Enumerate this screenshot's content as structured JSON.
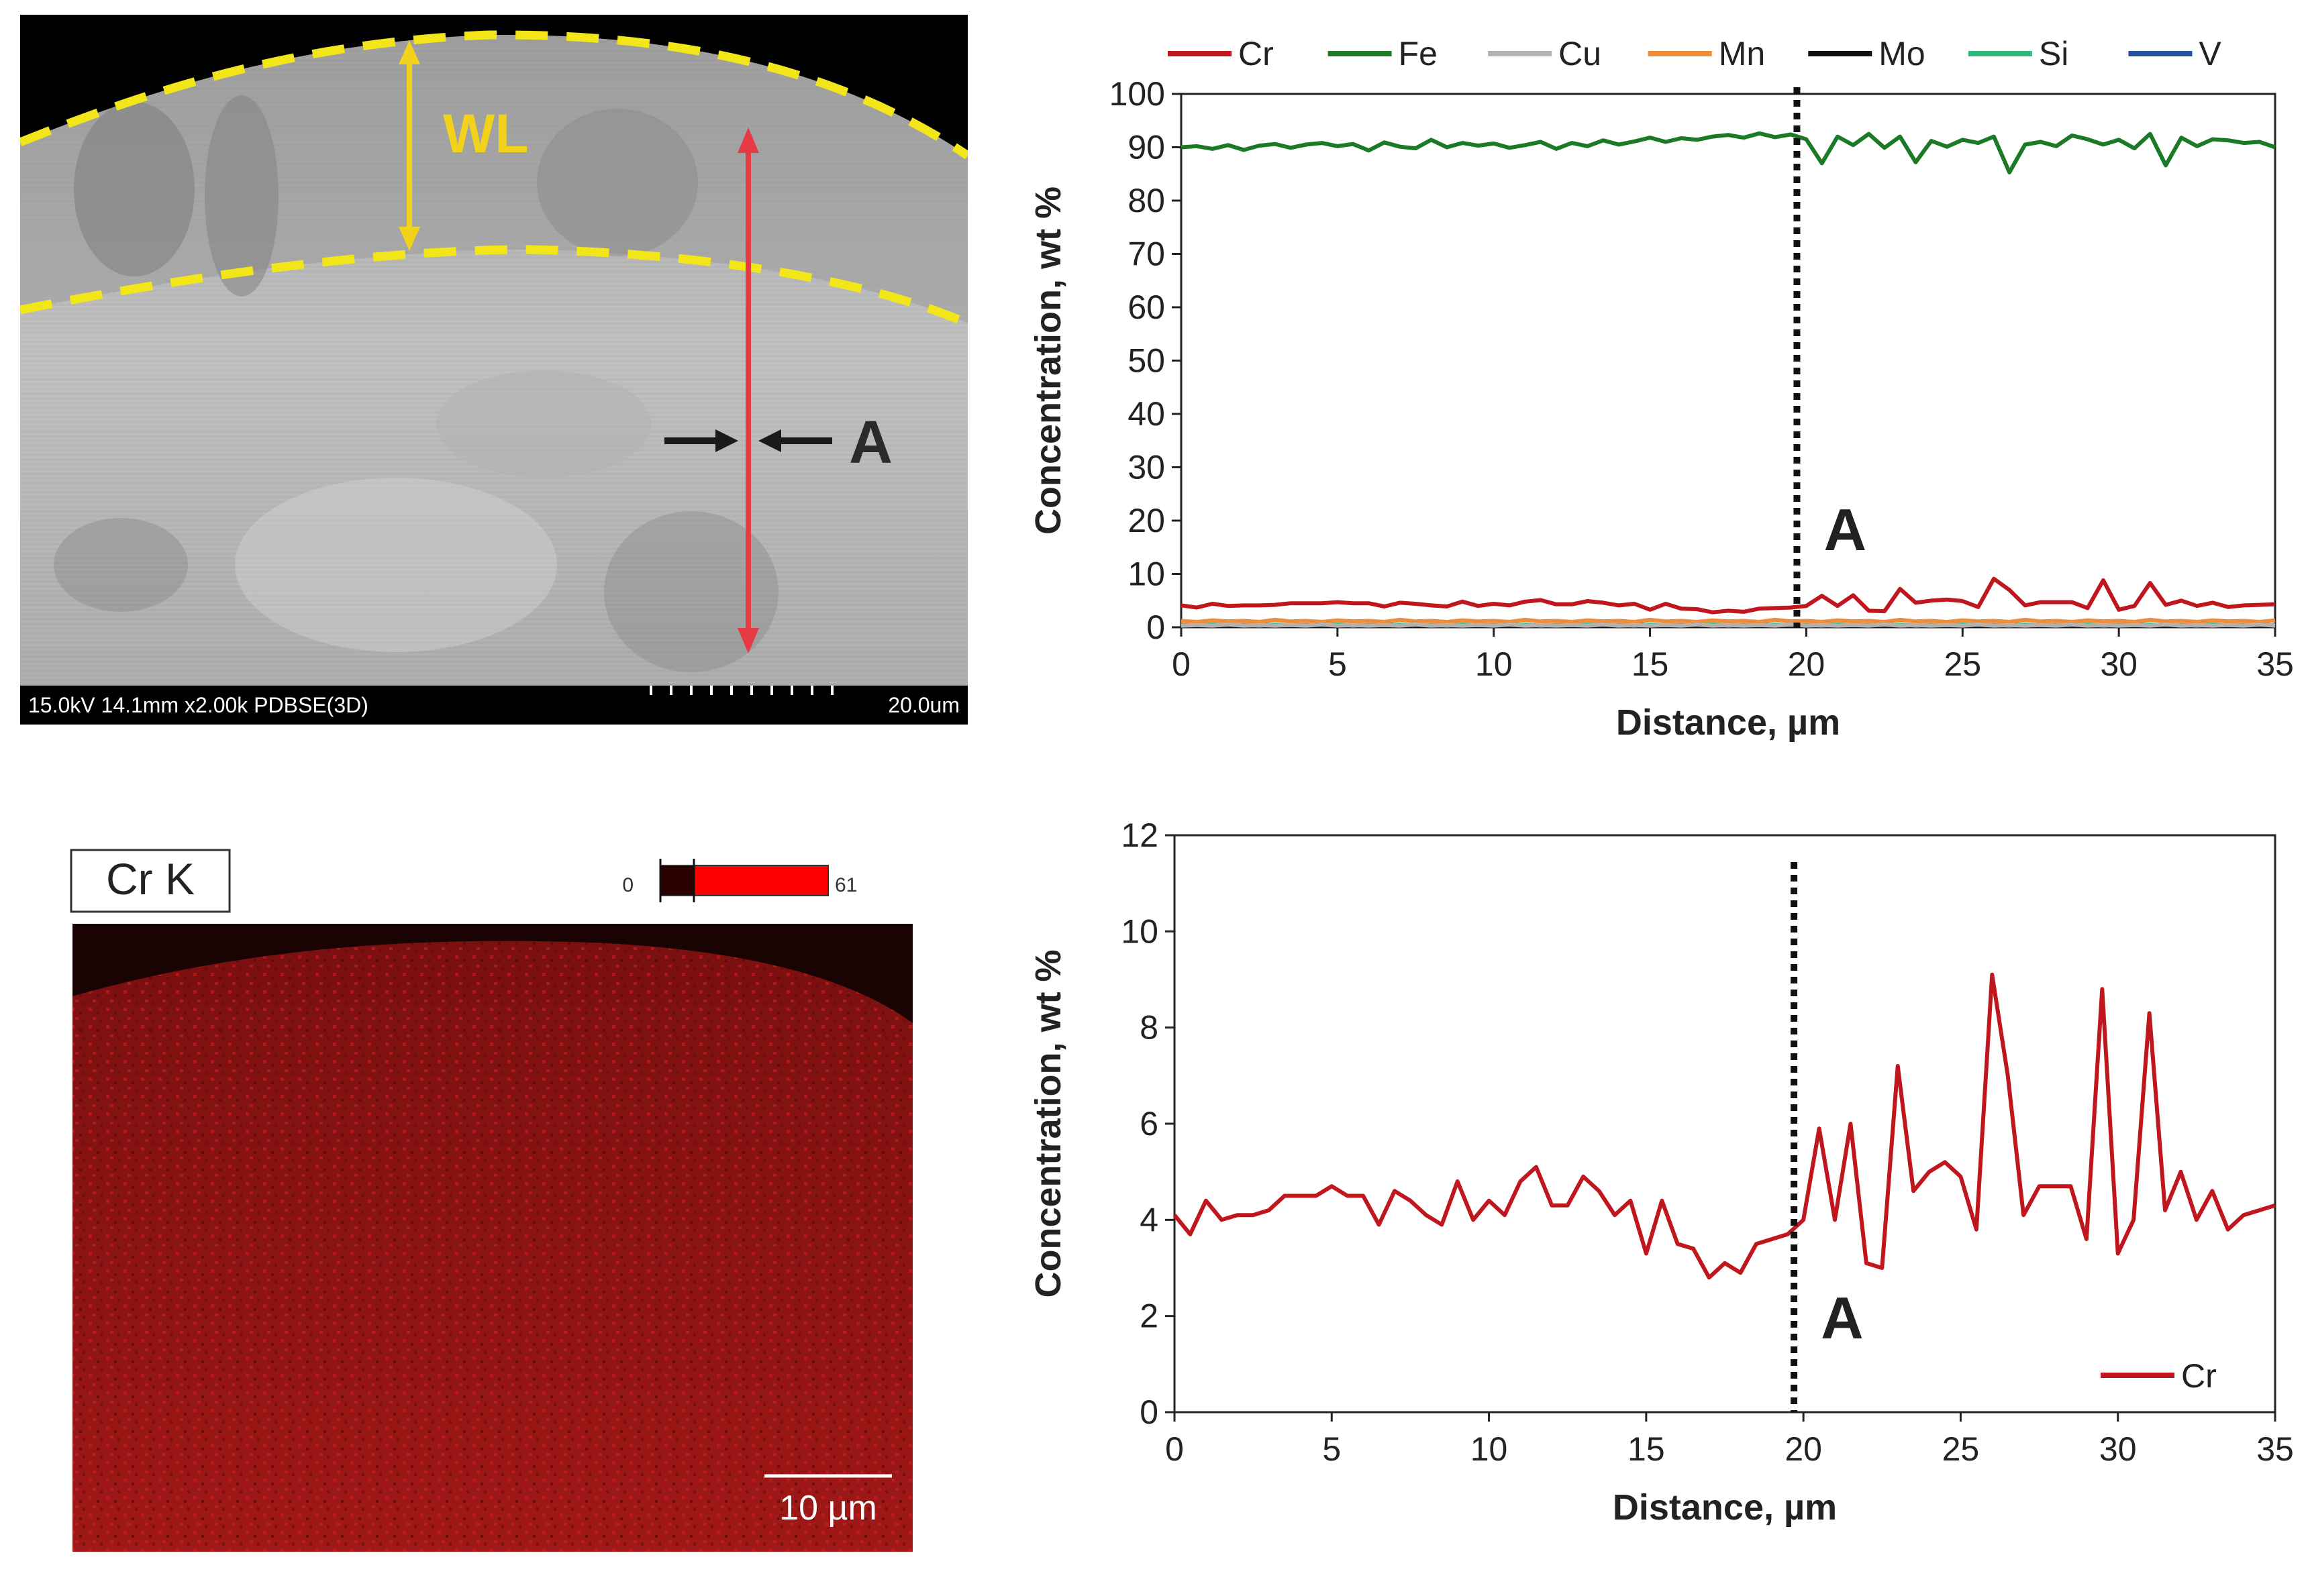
{
  "sem_image": {
    "label_wl": "WL",
    "label_a": "A",
    "footer_info": "15.0kV 14.1mm x2.00k PDBSE(3D)",
    "scale_text": "20.0um",
    "colors": {
      "dashed_boundary": "#f2e61a",
      "wl_arrow": "#f2d21a",
      "profile_arrow": "#e63a44",
      "marker_arrows": "#1a1a1a"
    }
  },
  "element_map": {
    "title": "Cr K",
    "colorbar_min": "0",
    "colorbar_max": "61",
    "scale_text": "10 µm",
    "colors": {
      "map": "#a01818",
      "colorbar_high": "#ff0000"
    }
  },
  "chart_data": [
    {
      "type": "line",
      "title": "",
      "xlabel": "Distance, µm",
      "ylabel": "Concentration, wt %",
      "xlim": [
        0,
        35
      ],
      "ylim": [
        0,
        100
      ],
      "xticks": [
        0,
        5,
        10,
        15,
        20,
        25,
        30,
        35
      ],
      "yticks": [
        0,
        10,
        20,
        30,
        40,
        50,
        60,
        70,
        80,
        90,
        100
      ],
      "legend_position": "top",
      "annotation": {
        "label": "A",
        "x": 19.7
      },
      "x": [
        0,
        0.5,
        1,
        1.5,
        2,
        2.5,
        3,
        3.5,
        4,
        4.5,
        5,
        5.5,
        6,
        6.5,
        7,
        7.5,
        8,
        8.5,
        9,
        9.5,
        10,
        10.5,
        11,
        11.5,
        12,
        12.5,
        13,
        13.5,
        14,
        14.5,
        15,
        15.5,
        16,
        16.5,
        17,
        17.5,
        18,
        18.5,
        19,
        19.5,
        20,
        20.5,
        21,
        21.5,
        22,
        22.5,
        23,
        23.5,
        24,
        24.5,
        25,
        25.5,
        26,
        26.5,
        27,
        27.5,
        28,
        28.5,
        29,
        29.5,
        30,
        30.5,
        31,
        31.5,
        32,
        32.5,
        33,
        33.5,
        34,
        34.5,
        35
      ],
      "series": [
        {
          "name": "Cr",
          "color": "#c0161e",
          "values": [
            4.1,
            3.7,
            4.4,
            4.0,
            4.1,
            4.1,
            4.2,
            4.5,
            4.5,
            4.5,
            4.7,
            4.5,
            4.5,
            3.9,
            4.6,
            4.4,
            4.1,
            3.9,
            4.8,
            4.0,
            4.4,
            4.1,
            4.8,
            5.1,
            4.3,
            4.3,
            4.9,
            4.6,
            4.1,
            4.4,
            3.3,
            4.4,
            3.5,
            3.4,
            2.8,
            3.1,
            2.9,
            3.5,
            3.6,
            3.7,
            4.0,
            5.9,
            4.0,
            6.0,
            3.1,
            3.0,
            7.2,
            4.6,
            5.0,
            5.2,
            4.9,
            3.8,
            9.1,
            7.0,
            4.1,
            4.7,
            4.7,
            4.7,
            3.6,
            8.8,
            3.3,
            4.0,
            8.3,
            4.2,
            5.0,
            4.0,
            4.6,
            3.8,
            4.1,
            4.2,
            4.3
          ]
        },
        {
          "name": "Fe",
          "color": "#1c7a26",
          "values": [
            90.0,
            90.2,
            89.7,
            90.4,
            89.5,
            90.3,
            90.6,
            89.9,
            90.5,
            90.8,
            90.2,
            90.6,
            89.4,
            90.9,
            90.1,
            89.8,
            91.4,
            90.0,
            90.8,
            90.3,
            90.7,
            89.9,
            90.4,
            91.0,
            89.7,
            90.8,
            90.2,
            91.3,
            90.5,
            91.1,
            91.8,
            91.0,
            91.7,
            91.4,
            92.0,
            92.3,
            91.8,
            92.6,
            91.9,
            92.4,
            91.5,
            87.0,
            92.0,
            90.4,
            92.5,
            89.9,
            92.0,
            87.2,
            91.2,
            90.1,
            91.4,
            90.8,
            92.0,
            85.3,
            90.5,
            91.0,
            90.2,
            92.2,
            91.5,
            90.5,
            91.4,
            89.8,
            92.5,
            86.6,
            91.8,
            90.2,
            91.5,
            91.3,
            90.8,
            91.0,
            90.0
          ]
        },
        {
          "name": "Cu",
          "color": "#b3b3b3",
          "values": [
            0.3,
            0.4,
            0.3,
            0.5,
            0.3,
            0.4,
            0.3,
            0.4,
            0.3,
            0.5,
            0.3,
            0.4,
            0.3,
            0.4,
            0.3,
            0.5,
            0.3,
            0.4,
            0.3,
            0.4,
            0.3,
            0.5,
            0.3,
            0.4,
            0.3,
            0.4,
            0.3,
            0.5,
            0.3,
            0.4,
            0.3,
            0.4,
            0.3,
            0.5,
            0.3,
            0.4,
            0.3,
            0.4,
            0.3,
            0.5,
            0.3,
            0.4,
            0.3,
            0.4,
            0.3,
            0.5,
            0.3,
            0.4,
            0.3,
            0.4,
            0.3,
            0.5,
            0.3,
            0.4,
            0.3,
            0.4,
            0.3,
            0.5,
            0.3,
            0.4,
            0.3,
            0.4,
            0.3,
            0.5,
            0.3,
            0.4,
            0.3,
            0.4,
            0.3,
            0.5,
            0.3
          ]
        },
        {
          "name": "Mn",
          "color": "#f08c3a",
          "values": [
            1.2,
            1.0,
            1.3,
            1.1,
            1.2,
            1.0,
            1.4,
            1.1,
            1.2,
            1.0,
            1.3,
            1.1,
            1.2,
            1.0,
            1.4,
            1.1,
            1.2,
            1.0,
            1.3,
            1.1,
            1.2,
            1.0,
            1.4,
            1.1,
            1.2,
            1.0,
            1.3,
            1.1,
            1.2,
            1.0,
            1.4,
            1.1,
            1.2,
            1.0,
            1.3,
            1.1,
            1.2,
            1.0,
            1.4,
            1.1,
            1.2,
            1.0,
            1.3,
            1.1,
            1.2,
            1.0,
            1.4,
            1.1,
            1.2,
            1.0,
            1.3,
            1.1,
            1.2,
            1.0,
            1.4,
            1.1,
            1.2,
            1.0,
            1.3,
            1.1,
            1.2,
            1.0,
            1.4,
            1.1,
            1.2,
            1.0,
            1.3,
            1.1,
            1.2,
            1.0,
            1.3
          ]
        },
        {
          "name": "Mo",
          "color": "#111111",
          "values": [
            0.2,
            0.3,
            0.2,
            0.3,
            0.2,
            0.4,
            0.2,
            0.3,
            0.2,
            0.3,
            0.2,
            0.4,
            0.2,
            0.3,
            0.2,
            0.3,
            0.2,
            0.4,
            0.2,
            0.3,
            0.2,
            0.3,
            0.2,
            0.4,
            0.2,
            0.3,
            0.2,
            0.3,
            0.2,
            0.4,
            0.2,
            0.3,
            0.2,
            0.3,
            0.2,
            0.4,
            0.2,
            0.3,
            0.2,
            0.3,
            0.2,
            0.4,
            0.2,
            0.3,
            0.2,
            0.3,
            0.2,
            0.4,
            0.2,
            0.3,
            0.2,
            0.3,
            0.2,
            0.4,
            0.2,
            0.3,
            0.2,
            0.3,
            0.2,
            0.4,
            0.2,
            0.3,
            0.2,
            0.3,
            0.2,
            0.4,
            0.2,
            0.3,
            0.2,
            0.3,
            0.2
          ]
        },
        {
          "name": "Si",
          "color": "#2eb87a",
          "values": [
            0.4,
            0.3,
            0.5,
            0.3,
            0.4,
            0.3,
            0.5,
            0.3,
            0.4,
            0.3,
            0.5,
            0.3,
            0.4,
            0.3,
            0.5,
            0.3,
            0.4,
            0.3,
            0.5,
            0.3,
            0.4,
            0.3,
            0.5,
            0.3,
            0.4,
            0.3,
            0.5,
            0.3,
            0.4,
            0.3,
            0.5,
            0.3,
            0.4,
            0.3,
            0.5,
            0.3,
            0.4,
            0.3,
            0.5,
            0.3,
            0.4,
            0.3,
            0.5,
            0.3,
            0.4,
            0.3,
            0.5,
            0.3,
            0.4,
            0.3,
            0.5,
            0.3,
            0.4,
            0.3,
            0.5,
            0.3,
            0.4,
            0.3,
            0.5,
            0.3,
            0.4,
            0.3,
            0.5,
            0.3,
            0.4,
            0.3,
            0.5,
            0.3,
            0.4,
            0.3,
            0.4
          ]
        },
        {
          "name": "V",
          "color": "#23519e",
          "values": [
            0.3,
            0.5,
            0.3,
            0.4,
            0.3,
            0.6,
            0.3,
            0.4,
            0.3,
            0.5,
            0.3,
            0.4,
            0.3,
            0.6,
            0.3,
            0.4,
            0.3,
            0.5,
            0.3,
            0.4,
            0.3,
            0.6,
            0.3,
            0.4,
            0.3,
            0.5,
            0.3,
            0.4,
            0.3,
            0.6,
            0.3,
            0.4,
            0.3,
            0.5,
            0.3,
            0.4,
            0.3,
            0.6,
            0.3,
            0.4,
            0.3,
            0.5,
            0.3,
            0.4,
            0.3,
            0.6,
            0.3,
            0.4,
            0.3,
            0.5,
            0.3,
            0.4,
            0.3,
            0.6,
            0.3,
            0.4,
            0.3,
            0.5,
            0.3,
            0.4,
            0.3,
            0.6,
            0.3,
            0.4,
            0.3,
            0.5,
            0.3,
            0.4,
            0.3,
            0.6,
            0.3
          ]
        }
      ]
    },
    {
      "type": "line",
      "title": "",
      "xlabel": "Distance, µm",
      "ylabel": "Concentration, wt %",
      "xlim": [
        0,
        35
      ],
      "ylim": [
        0,
        12
      ],
      "xticks": [
        0,
        5,
        10,
        15,
        20,
        25,
        30,
        35
      ],
      "yticks": [
        0,
        2,
        4,
        6,
        8,
        10,
        12
      ],
      "legend_position": "bottom-right",
      "annotation": {
        "label": "A",
        "x": 19.7
      },
      "x": [
        0,
        0.5,
        1,
        1.5,
        2,
        2.5,
        3,
        3.5,
        4,
        4.5,
        5,
        5.5,
        6,
        6.5,
        7,
        7.5,
        8,
        8.5,
        9,
        9.5,
        10,
        10.5,
        11,
        11.5,
        12,
        12.5,
        13,
        13.5,
        14,
        14.5,
        15,
        15.5,
        16,
        16.5,
        17,
        17.5,
        18,
        18.5,
        19,
        19.5,
        20,
        20.5,
        21,
        21.5,
        22,
        22.5,
        23,
        23.5,
        24,
        24.5,
        25,
        25.5,
        26,
        26.5,
        27,
        27.5,
        28,
        28.5,
        29,
        29.5,
        30,
        30.5,
        31,
        31.5,
        32,
        32.5,
        33,
        33.5,
        34,
        34.5,
        35
      ],
      "series": [
        {
          "name": "Cr",
          "color": "#c0161e",
          "values": [
            4.1,
            3.7,
            4.4,
            4.0,
            4.1,
            4.1,
            4.2,
            4.5,
            4.5,
            4.5,
            4.7,
            4.5,
            4.5,
            3.9,
            4.6,
            4.4,
            4.1,
            3.9,
            4.8,
            4.0,
            4.4,
            4.1,
            4.8,
            5.1,
            4.3,
            4.3,
            4.9,
            4.6,
            4.1,
            4.4,
            3.3,
            4.4,
            3.5,
            3.4,
            2.8,
            3.1,
            2.9,
            3.5,
            3.6,
            3.7,
            4.0,
            5.9,
            4.0,
            6.0,
            3.1,
            3.0,
            7.2,
            4.6,
            5.0,
            5.2,
            4.9,
            3.8,
            9.1,
            7.0,
            4.1,
            4.7,
            4.7,
            4.7,
            3.6,
            8.8,
            3.3,
            4.0,
            8.3,
            4.2,
            5.0,
            4.0,
            4.6,
            3.8,
            4.1,
            4.2,
            4.3
          ]
        }
      ]
    }
  ]
}
